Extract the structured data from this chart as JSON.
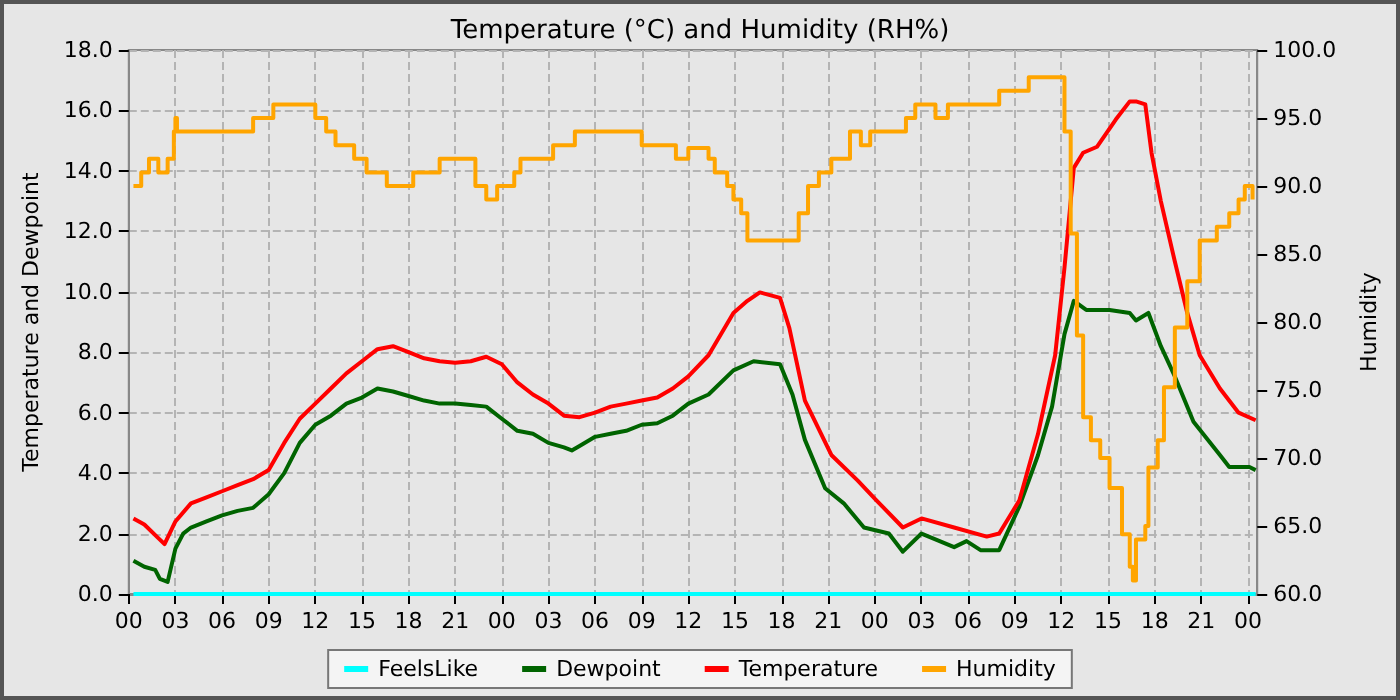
{
  "chart_data": {
    "type": "line",
    "title": "Temperature (°C) and Humidity (RH%)",
    "xlabel": null,
    "ylabel": "Temperature and Dewpoint",
    "y2label": "Humidity",
    "xlim": [
      0,
      72.6
    ],
    "xticks": [
      {
        "value": 0,
        "label": "00"
      },
      {
        "value": 3,
        "label": "03"
      },
      {
        "value": 6,
        "label": "06"
      },
      {
        "value": 9,
        "label": "09"
      },
      {
        "value": 12,
        "label": "12"
      },
      {
        "value": 15,
        "label": "15"
      },
      {
        "value": 18,
        "label": "18"
      },
      {
        "value": 21,
        "label": "21"
      },
      {
        "value": 24,
        "label": "00"
      },
      {
        "value": 27,
        "label": "03"
      },
      {
        "value": 30,
        "label": "06"
      },
      {
        "value": 33,
        "label": "09"
      },
      {
        "value": 36,
        "label": "12"
      },
      {
        "value": 39,
        "label": "15"
      },
      {
        "value": 42,
        "label": "18"
      },
      {
        "value": 45,
        "label": "21"
      },
      {
        "value": 48,
        "label": "00"
      },
      {
        "value": 51,
        "label": "03"
      },
      {
        "value": 54,
        "label": "06"
      },
      {
        "value": 57,
        "label": "09"
      },
      {
        "value": 60,
        "label": "12"
      },
      {
        "value": 63,
        "label": "15"
      },
      {
        "value": 66,
        "label": "18"
      },
      {
        "value": 69,
        "label": "21"
      },
      {
        "value": 72,
        "label": "00"
      }
    ],
    "ylim": [
      0,
      18
    ],
    "yticks": [
      {
        "value": 0,
        "label": "0.0"
      },
      {
        "value": 2,
        "label": "2.0"
      },
      {
        "value": 4,
        "label": "4.0"
      },
      {
        "value": 6,
        "label": "6.0"
      },
      {
        "value": 8,
        "label": "8.0"
      },
      {
        "value": 10,
        "label": "10.0"
      },
      {
        "value": 12,
        "label": "12.0"
      },
      {
        "value": 14,
        "label": "14.0"
      },
      {
        "value": 16,
        "label": "16.0"
      },
      {
        "value": 18,
        "label": "18.0"
      }
    ],
    "y2lim": [
      60,
      100
    ],
    "y2ticks": [
      {
        "value": 60,
        "label": "60.0"
      },
      {
        "value": 65,
        "label": "65.0"
      },
      {
        "value": 70,
        "label": "70.0"
      },
      {
        "value": 75,
        "label": "75.0"
      },
      {
        "value": 80,
        "label": "80.0"
      },
      {
        "value": 85,
        "label": "85.0"
      },
      {
        "value": 90,
        "label": "90.0"
      },
      {
        "value": 95,
        "label": "95.0"
      },
      {
        "value": 100,
        "label": "100.0"
      }
    ],
    "grid": true,
    "legend": "bottom",
    "marker": "none",
    "line_style": "solid",
    "series": [
      {
        "name": "FeelsLike",
        "color": "#00ffff",
        "x": [
          0.3,
          72.5
        ],
        "values": [
          0,
          0
        ]
      },
      {
        "name": "Dewpoint",
        "color": "#006400",
        "x": [
          0.3,
          1,
          1.7,
          2,
          2.5,
          3,
          3.5,
          4,
          5,
          6,
          7,
          8,
          9,
          10,
          11,
          12,
          13,
          14,
          15,
          16,
          17,
          18,
          19,
          20,
          21,
          22,
          23,
          24,
          25,
          26,
          27,
          28,
          28.5,
          29,
          30,
          31,
          32,
          33,
          34,
          35,
          36,
          37.3,
          38.9,
          40.2,
          41.9,
          42.7,
          43.5,
          44.8,
          46,
          47.3,
          48.9,
          49.8,
          51,
          53.1,
          53.9,
          54.8,
          56,
          57.3,
          58.5,
          59.4,
          60.2,
          60.8,
          61.6,
          63.1,
          64.4,
          64.8,
          65.6,
          66.4,
          67.3,
          68.5,
          70.2,
          70.8,
          72.1,
          72.5
        ],
        "values": [
          1.1,
          0.9,
          0.8,
          0.5,
          0.4,
          1.5,
          2.0,
          2.2,
          2.4,
          2.6,
          2.75,
          2.85,
          3.3,
          4.0,
          5.0,
          5.6,
          5.9,
          6.3,
          6.5,
          6.8,
          6.7,
          6.55,
          6.4,
          6.3,
          6.3,
          6.25,
          6.2,
          5.8,
          5.4,
          5.3,
          5.0,
          4.85,
          4.75,
          4.9,
          5.2,
          5.3,
          5.4,
          5.6,
          5.65,
          5.9,
          6.3,
          6.6,
          7.4,
          7.7,
          7.6,
          6.6,
          5.1,
          3.5,
          3.0,
          2.2,
          2.0,
          1.4,
          2.0,
          1.55,
          1.75,
          1.45,
          1.45,
          2.9,
          4.6,
          6.2,
          8.6,
          9.7,
          9.4,
          9.4,
          9.3,
          9.05,
          9.3,
          8.2,
          7.2,
          5.7,
          4.6,
          4.2,
          4.2,
          4.1
        ]
      },
      {
        "name": "Temperature",
        "color": "#ff0000",
        "x": [
          0.3,
          1,
          2,
          2.3,
          3,
          4,
          5,
          6,
          7,
          8,
          9,
          10,
          11,
          12,
          13,
          14,
          15,
          16,
          17,
          18,
          19,
          20,
          21,
          22,
          23,
          24,
          25,
          26,
          27,
          28,
          29,
          30,
          31,
          32,
          33,
          34,
          35,
          36,
          37.3,
          38.9,
          39.8,
          40.6,
          41.9,
          42.5,
          43.5,
          45.2,
          46.9,
          48.1,
          49.8,
          51,
          53.1,
          55.2,
          56,
          57.3,
          58.5,
          59.6,
          60.2,
          60.8,
          61.4,
          62.3,
          63.5,
          64.4,
          64.8,
          65.4,
          65.8,
          66.4,
          67.3,
          68.1,
          68.9,
          70.2,
          71.4,
          72.5
        ],
        "values": [
          2.5,
          2.3,
          1.8,
          1.65,
          2.4,
          3.0,
          3.2,
          3.4,
          3.6,
          3.8,
          4.1,
          5.0,
          5.8,
          6.3,
          6.8,
          7.3,
          7.7,
          8.1,
          8.2,
          8.0,
          7.8,
          7.7,
          7.65,
          7.7,
          7.85,
          7.6,
          7.0,
          6.6,
          6.3,
          5.9,
          5.85,
          6.0,
          6.2,
          6.3,
          6.4,
          6.5,
          6.8,
          7.2,
          7.9,
          9.3,
          9.7,
          9.98,
          9.8,
          8.8,
          6.4,
          4.6,
          3.75,
          3.1,
          2.2,
          2.5,
          2.2,
          1.9,
          2.0,
          3.1,
          5.3,
          7.9,
          10.8,
          14.1,
          14.6,
          14.8,
          15.7,
          16.3,
          16.3,
          16.2,
          14.6,
          13.0,
          11.0,
          9.3,
          7.9,
          6.8,
          6.0,
          5.75
        ]
      },
      {
        "name": "Humidity",
        "color": "#ffa500",
        "type": "step",
        "axis": "y2",
        "x": [
          0.3,
          0.8,
          1.3,
          1.9,
          2.5,
          2.9,
          3,
          3.1,
          8,
          9.3,
          12,
          12.7,
          13.3,
          14.5,
          15.3,
          16.6,
          18.3,
          20,
          22.3,
          23,
          23.7,
          24.8,
          25.2,
          27.3,
          28.7,
          33,
          35.2,
          36,
          37.3,
          37.7,
          38.5,
          38.9,
          39.4,
          39.8,
          42.7,
          43.1,
          43.7,
          44.4,
          45.2,
          46.4,
          47.1,
          47.7,
          50,
          50.6,
          51.9,
          52.7,
          56,
          57.9,
          60,
          60.2,
          60.6,
          61,
          61.4,
          61.9,
          62.5,
          63.1,
          63.9,
          64.4,
          64.6,
          64.8,
          65.4,
          65.6,
          66.2,
          66.6,
          67.3,
          68.1,
          68.9,
          70,
          70.8,
          71.4,
          71.8,
          72.3
        ],
        "values": [
          90,
          91,
          92,
          91,
          92,
          94,
          95,
          94,
          95,
          96,
          95,
          94,
          93,
          92,
          91,
          90,
          91,
          92,
          90,
          89,
          90,
          91,
          92,
          93,
          94,
          93,
          92,
          92.8,
          92,
          91,
          90,
          89,
          88,
          86,
          86,
          88,
          90,
          91,
          92,
          94,
          93,
          94,
          95,
          96,
          95,
          96,
          97,
          98,
          98,
          94,
          86.5,
          79,
          73,
          71.3,
          70,
          67.8,
          64.4,
          62,
          61,
          64,
          65,
          69.3,
          71.3,
          75.2,
          79.6,
          83,
          86,
          87,
          88,
          89,
          90,
          89
        ]
      }
    ]
  }
}
